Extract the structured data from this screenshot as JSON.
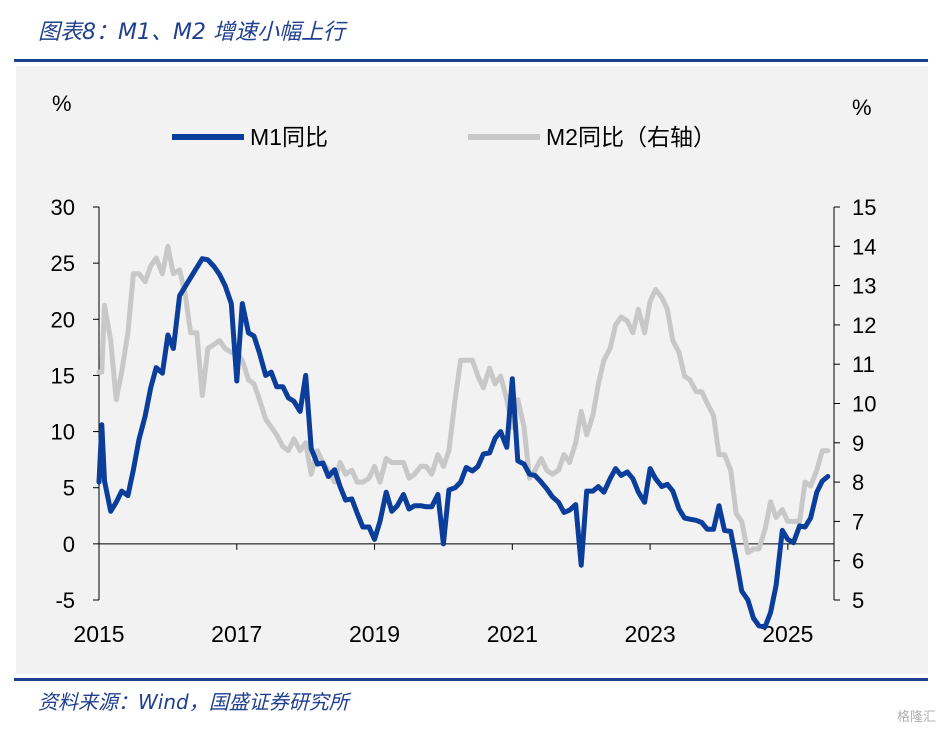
{
  "header": {
    "title": "图表8：M1、M2 增速小幅上行"
  },
  "footer": {
    "source": "资料来源：Wind，国盛证券研究所",
    "watermark": "格隆汇"
  },
  "chart_data": {
    "type": "line",
    "title": "",
    "left_axis": {
      "unit": "%",
      "ylim": [
        -5,
        30
      ],
      "ticks": [
        "30",
        "25",
        "20",
        "15",
        "10",
        "5",
        "0",
        "-5"
      ]
    },
    "right_axis": {
      "unit": "%",
      "ylim": [
        5,
        15
      ],
      "ticks": [
        "15",
        "14",
        "13",
        "12",
        "11",
        "10",
        "9",
        "8",
        "7",
        "6",
        "5"
      ]
    },
    "xlim": [
      2015,
      2025.67
    ],
    "x_ticks": [
      "2015",
      "2017",
      "2019",
      "2021",
      "2023",
      "2025"
    ],
    "legend_position": "top",
    "series": [
      {
        "name": "M1同比",
        "axis": "left",
        "color": "#0b3d9a",
        "points": [
          [
            2015.0,
            5.5
          ],
          [
            2015.04,
            10.6
          ],
          [
            2015.08,
            5.6
          ],
          [
            2015.17,
            2.9
          ],
          [
            2015.25,
            3.7
          ],
          [
            2015.33,
            4.7
          ],
          [
            2015.42,
            4.3
          ],
          [
            2015.5,
            6.6
          ],
          [
            2015.58,
            9.3
          ],
          [
            2015.67,
            11.4
          ],
          [
            2015.75,
            13.9
          ],
          [
            2015.83,
            15.7
          ],
          [
            2015.92,
            15.2
          ],
          [
            2016.0,
            18.6
          ],
          [
            2016.08,
            17.4
          ],
          [
            2016.17,
            22.1
          ],
          [
            2016.25,
            22.9
          ],
          [
            2016.33,
            23.7
          ],
          [
            2016.42,
            24.6
          ],
          [
            2016.5,
            25.4
          ],
          [
            2016.58,
            25.3
          ],
          [
            2016.67,
            24.7
          ],
          [
            2016.75,
            24.0
          ],
          [
            2016.83,
            23.0
          ],
          [
            2016.92,
            21.4
          ],
          [
            2017.0,
            14.5
          ],
          [
            2017.08,
            21.4
          ],
          [
            2017.17,
            18.8
          ],
          [
            2017.25,
            18.5
          ],
          [
            2017.33,
            17.0
          ],
          [
            2017.42,
            15.0
          ],
          [
            2017.5,
            15.3
          ],
          [
            2017.58,
            14.0
          ],
          [
            2017.67,
            14.0
          ],
          [
            2017.75,
            13.0
          ],
          [
            2017.83,
            12.7
          ],
          [
            2017.92,
            11.8
          ],
          [
            2018.0,
            15.0
          ],
          [
            2018.08,
            8.5
          ],
          [
            2018.17,
            7.1
          ],
          [
            2018.25,
            7.2
          ],
          [
            2018.33,
            6.0
          ],
          [
            2018.42,
            6.6
          ],
          [
            2018.5,
            5.1
          ],
          [
            2018.58,
            3.9
          ],
          [
            2018.67,
            4.0
          ],
          [
            2018.75,
            2.7
          ],
          [
            2018.83,
            1.5
          ],
          [
            2018.92,
            1.5
          ],
          [
            2019.0,
            0.4
          ],
          [
            2019.08,
            2.0
          ],
          [
            2019.17,
            4.6
          ],
          [
            2019.25,
            2.9
          ],
          [
            2019.33,
            3.4
          ],
          [
            2019.42,
            4.4
          ],
          [
            2019.5,
            3.1
          ],
          [
            2019.58,
            3.4
          ],
          [
            2019.67,
            3.4
          ],
          [
            2019.75,
            3.3
          ],
          [
            2019.83,
            3.3
          ],
          [
            2019.92,
            4.4
          ],
          [
            2020.0,
            0.0
          ],
          [
            2020.08,
            4.8
          ],
          [
            2020.17,
            5.0
          ],
          [
            2020.25,
            5.5
          ],
          [
            2020.33,
            6.8
          ],
          [
            2020.42,
            6.5
          ],
          [
            2020.5,
            6.9
          ],
          [
            2020.58,
            8.0
          ],
          [
            2020.67,
            8.1
          ],
          [
            2020.75,
            9.4
          ],
          [
            2020.83,
            10.0
          ],
          [
            2020.92,
            8.6
          ],
          [
            2021.0,
            14.7
          ],
          [
            2021.08,
            7.4
          ],
          [
            2021.17,
            7.1
          ],
          [
            2021.25,
            6.2
          ],
          [
            2021.33,
            6.1
          ],
          [
            2021.42,
            5.5
          ],
          [
            2021.5,
            4.9
          ],
          [
            2021.58,
            4.2
          ],
          [
            2021.67,
            3.7
          ],
          [
            2021.75,
            2.8
          ],
          [
            2021.83,
            3.0
          ],
          [
            2021.92,
            3.5
          ],
          [
            2022.0,
            -1.9
          ],
          [
            2022.08,
            4.7
          ],
          [
            2022.17,
            4.7
          ],
          [
            2022.25,
            5.1
          ],
          [
            2022.33,
            4.6
          ],
          [
            2022.42,
            5.8
          ],
          [
            2022.5,
            6.7
          ],
          [
            2022.58,
            6.1
          ],
          [
            2022.67,
            6.4
          ],
          [
            2022.75,
            5.8
          ],
          [
            2022.83,
            4.6
          ],
          [
            2022.92,
            3.7
          ],
          [
            2023.0,
            6.7
          ],
          [
            2023.08,
            5.8
          ],
          [
            2023.17,
            5.1
          ],
          [
            2023.25,
            5.3
          ],
          [
            2023.33,
            4.7
          ],
          [
            2023.42,
            3.1
          ],
          [
            2023.5,
            2.3
          ],
          [
            2023.58,
            2.2
          ],
          [
            2023.67,
            2.1
          ],
          [
            2023.75,
            1.9
          ],
          [
            2023.83,
            1.3
          ],
          [
            2023.92,
            1.3
          ],
          [
            2024.0,
            3.4
          ],
          [
            2024.08,
            1.2
          ],
          [
            2024.17,
            1.1
          ],
          [
            2024.25,
            -1.4
          ],
          [
            2024.33,
            -4.2
          ],
          [
            2024.42,
            -5.0
          ],
          [
            2024.5,
            -6.6
          ],
          [
            2024.58,
            -7.3
          ],
          [
            2024.67,
            -7.4
          ],
          [
            2024.75,
            -6.1
          ],
          [
            2024.83,
            -3.7
          ],
          [
            2024.92,
            1.2
          ],
          [
            2025.0,
            0.4
          ],
          [
            2025.08,
            0.1
          ],
          [
            2025.17,
            1.6
          ],
          [
            2025.25,
            1.5
          ],
          [
            2025.33,
            2.3
          ],
          [
            2025.42,
            4.6
          ],
          [
            2025.5,
            5.6
          ],
          [
            2025.58,
            6.0
          ]
        ]
      },
      {
        "name": "M2同比（右轴）",
        "axis": "right",
        "color": "#c8c8c8",
        "points": [
          [
            2015.0,
            10.8
          ],
          [
            2015.04,
            10.8
          ],
          [
            2015.08,
            12.5
          ],
          [
            2015.17,
            11.6
          ],
          [
            2015.25,
            10.1
          ],
          [
            2015.33,
            10.8
          ],
          [
            2015.42,
            11.8
          ],
          [
            2015.5,
            13.3
          ],
          [
            2015.58,
            13.3
          ],
          [
            2015.67,
            13.1
          ],
          [
            2015.75,
            13.5
          ],
          [
            2015.83,
            13.7
          ],
          [
            2015.92,
            13.3
          ],
          [
            2016.0,
            14.0
          ],
          [
            2016.08,
            13.3
          ],
          [
            2016.17,
            13.4
          ],
          [
            2016.25,
            12.8
          ],
          [
            2016.33,
            11.8
          ],
          [
            2016.42,
            11.8
          ],
          [
            2016.5,
            10.2
          ],
          [
            2016.58,
            11.4
          ],
          [
            2016.67,
            11.5
          ],
          [
            2016.75,
            11.6
          ],
          [
            2016.83,
            11.4
          ],
          [
            2016.92,
            11.3
          ],
          [
            2017.0,
            11.3
          ],
          [
            2017.08,
            11.1
          ],
          [
            2017.17,
            10.6
          ],
          [
            2017.25,
            10.5
          ],
          [
            2017.33,
            10.1
          ],
          [
            2017.42,
            9.6
          ],
          [
            2017.5,
            9.4
          ],
          [
            2017.58,
            9.2
          ],
          [
            2017.67,
            8.9
          ],
          [
            2017.75,
            8.8
          ],
          [
            2017.83,
            9.1
          ],
          [
            2017.92,
            8.8
          ],
          [
            2018.0,
            9.0
          ],
          [
            2018.08,
            8.2
          ],
          [
            2018.17,
            8.8
          ],
          [
            2018.25,
            8.5
          ],
          [
            2018.33,
            8.3
          ],
          [
            2018.42,
            8.0
          ],
          [
            2018.5,
            8.5
          ],
          [
            2018.58,
            8.2
          ],
          [
            2018.67,
            8.3
          ],
          [
            2018.75,
            8.0
          ],
          [
            2018.83,
            8.0
          ],
          [
            2018.92,
            8.1
          ],
          [
            2019.0,
            8.4
          ],
          [
            2019.08,
            8.0
          ],
          [
            2019.17,
            8.6
          ],
          [
            2019.25,
            8.5
          ],
          [
            2019.33,
            8.5
          ],
          [
            2019.42,
            8.5
          ],
          [
            2019.5,
            8.1
          ],
          [
            2019.58,
            8.2
          ],
          [
            2019.67,
            8.4
          ],
          [
            2019.75,
            8.4
          ],
          [
            2019.83,
            8.2
          ],
          [
            2019.92,
            8.7
          ],
          [
            2020.0,
            8.4
          ],
          [
            2020.08,
            8.8
          ],
          [
            2020.17,
            10.1
          ],
          [
            2020.25,
            11.1
          ],
          [
            2020.33,
            11.1
          ],
          [
            2020.42,
            11.1
          ],
          [
            2020.5,
            10.7
          ],
          [
            2020.58,
            10.4
          ],
          [
            2020.67,
            10.9
          ],
          [
            2020.75,
            10.5
          ],
          [
            2020.83,
            10.7
          ],
          [
            2020.92,
            10.1
          ],
          [
            2021.0,
            9.4
          ],
          [
            2021.08,
            10.1
          ],
          [
            2021.17,
            9.4
          ],
          [
            2021.25,
            8.1
          ],
          [
            2021.33,
            8.3
          ],
          [
            2021.42,
            8.6
          ],
          [
            2021.5,
            8.3
          ],
          [
            2021.58,
            8.2
          ],
          [
            2021.67,
            8.3
          ],
          [
            2021.75,
            8.7
          ],
          [
            2021.83,
            8.5
          ],
          [
            2021.92,
            9.0
          ],
          [
            2022.0,
            9.8
          ],
          [
            2022.08,
            9.2
          ],
          [
            2022.17,
            9.7
          ],
          [
            2022.25,
            10.5
          ],
          [
            2022.33,
            11.1
          ],
          [
            2022.42,
            11.4
          ],
          [
            2022.5,
            12.0
          ],
          [
            2022.58,
            12.2
          ],
          [
            2022.67,
            12.1
          ],
          [
            2022.75,
            11.8
          ],
          [
            2022.83,
            12.4
          ],
          [
            2022.92,
            11.8
          ],
          [
            2023.0,
            12.6
          ],
          [
            2023.08,
            12.9
          ],
          [
            2023.17,
            12.7
          ],
          [
            2023.25,
            12.4
          ],
          [
            2023.33,
            11.6
          ],
          [
            2023.42,
            11.3
          ],
          [
            2023.5,
            10.7
          ],
          [
            2023.58,
            10.6
          ],
          [
            2023.67,
            10.3
          ],
          [
            2023.75,
            10.3
          ],
          [
            2023.83,
            10.0
          ],
          [
            2023.92,
            9.7
          ],
          [
            2024.0,
            8.7
          ],
          [
            2024.08,
            8.7
          ],
          [
            2024.17,
            8.3
          ],
          [
            2024.25,
            7.2
          ],
          [
            2024.33,
            7.0
          ],
          [
            2024.42,
            6.2
          ],
          [
            2024.5,
            6.3
          ],
          [
            2024.58,
            6.3
          ],
          [
            2024.67,
            6.8
          ],
          [
            2024.75,
            7.5
          ],
          [
            2024.83,
            7.1
          ],
          [
            2024.92,
            7.3
          ],
          [
            2025.0,
            7.0
          ],
          [
            2025.08,
            7.0
          ],
          [
            2025.17,
            7.0
          ],
          [
            2025.25,
            8.0
          ],
          [
            2025.33,
            7.9
          ],
          [
            2025.42,
            8.3
          ],
          [
            2025.5,
            8.8
          ],
          [
            2025.58,
            8.8
          ]
        ]
      }
    ]
  }
}
